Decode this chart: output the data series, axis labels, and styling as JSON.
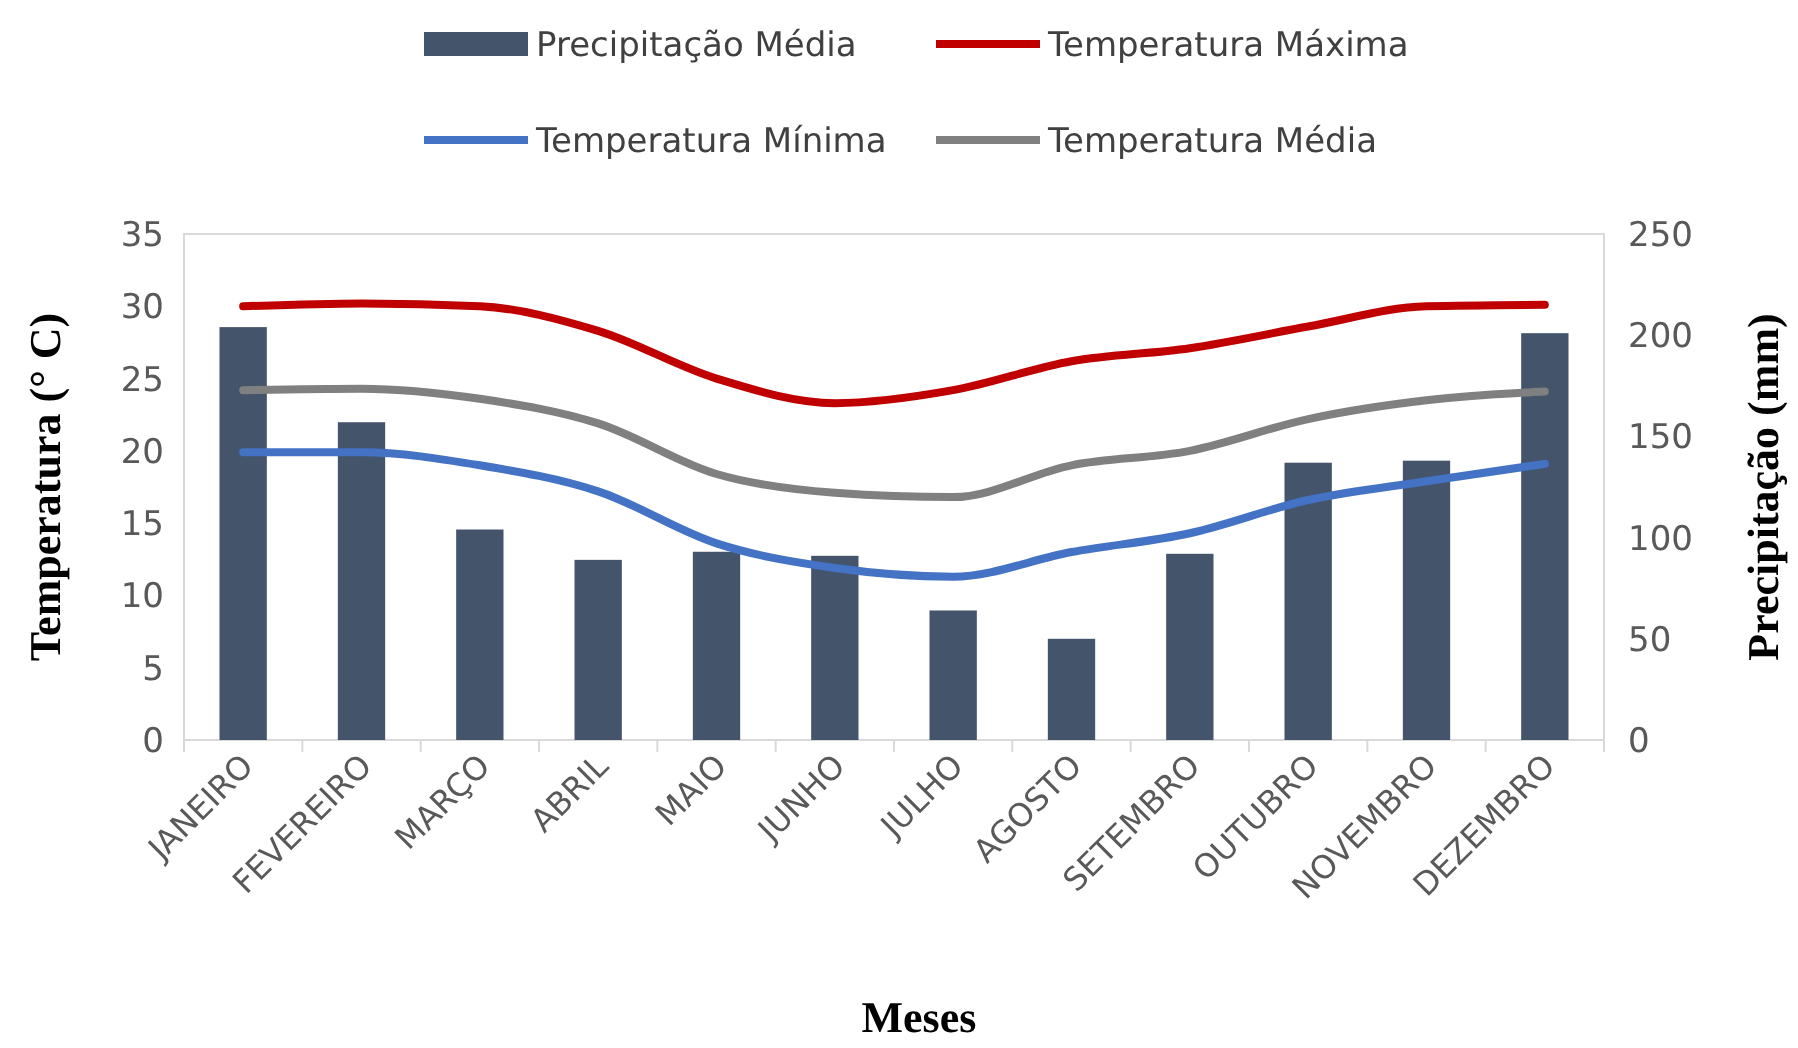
{
  "chart_data": {
    "type": "bar",
    "categories": [
      "JANEIRO",
      "FEVEREIRO",
      "MARÇO",
      "ABRIL",
      "MAIO",
      "JUNHO",
      "JULHO",
      "AGOSTO",
      "SETEMBRO",
      "OUTUBRO",
      "NOVEMBRO",
      "DEZEMBRO"
    ],
    "series": [
      {
        "name": "Precipitação Média",
        "axis": "y2",
        "color": "#44546a",
        "values": [
          204,
          157,
          104,
          89,
          93,
          91,
          64,
          50,
          92,
          137,
          138,
          201
        ]
      },
      {
        "name": "Temperatura Máxima",
        "type": "line",
        "color": "#c00000",
        "values": [
          30.0,
          30.2,
          30.0,
          28.3,
          25.0,
          23.3,
          24.2,
          26.2,
          27.1,
          28.6,
          30.0,
          30.1
        ]
      },
      {
        "name": "Temperatura Mínima",
        "type": "line",
        "color": "#4472c4",
        "values": [
          19.9,
          19.9,
          19.0,
          17.2,
          13.6,
          11.9,
          11.3,
          13.0,
          14.3,
          16.6,
          17.9,
          19.1
        ]
      },
      {
        "name": "Temperatura Média",
        "type": "line",
        "color": "#808080",
        "values": [
          24.2,
          24.3,
          23.6,
          21.9,
          18.4,
          17.1,
          16.8,
          19.0,
          20.0,
          22.2,
          23.5,
          24.1
        ]
      }
    ],
    "xlabel": "Meses",
    "ylabel": "Temperatura (° C)",
    "y2label": "Precipitação (mm)",
    "ylim": [
      0,
      35
    ],
    "yticks": [
      0,
      5,
      10,
      15,
      20,
      25,
      30,
      35
    ],
    "y2lim": [
      0,
      250
    ],
    "y2ticks": [
      0,
      50,
      100,
      150,
      200,
      250
    ],
    "legend": "top",
    "grid": false,
    "marker": "none",
    "line_style": "solid"
  }
}
